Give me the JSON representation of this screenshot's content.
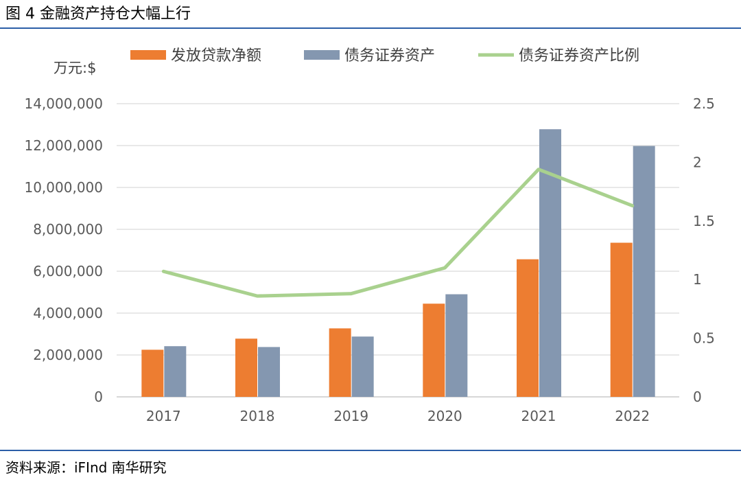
{
  "page": {
    "figure_title": "图 4  金融资产持仓大幅上行",
    "source_note": "资料来源：iFInd 南华研究"
  },
  "colors": {
    "loans": "#ed7d31",
    "securities": "#8497b0",
    "ratio": "#a9d18e",
    "grid": "#d9d9d9",
    "rule": "#2b5ea7"
  },
  "chart_data": {
    "type": "bar",
    "unit_label": "万元:$",
    "categories": [
      "2017",
      "2018",
      "2019",
      "2020",
      "2021",
      "2022"
    ],
    "series": [
      {
        "name": "发放贷款净额",
        "type": "bar",
        "axis": "left",
        "values": [
          2250000,
          2780000,
          3270000,
          4450000,
          6570000,
          7360000
        ]
      },
      {
        "name": "债务证券资产",
        "type": "bar",
        "axis": "left",
        "values": [
          2420000,
          2380000,
          2880000,
          4900000,
          12780000,
          11980000
        ]
      },
      {
        "name": "债务证券资产比例",
        "type": "line",
        "axis": "right",
        "values": [
          1.07,
          0.86,
          0.88,
          1.1,
          1.94,
          1.63
        ]
      }
    ],
    "y_left": {
      "min": 0,
      "max": 14000000,
      "ticks": [
        0,
        2000000,
        4000000,
        6000000,
        8000000,
        10000000,
        12000000,
        14000000
      ],
      "tick_labels": [
        "0",
        "2,000,000",
        "4,000,000",
        "6,000,000",
        "8,000,000",
        "10,000,000",
        "12,000,000",
        "14,000,000"
      ]
    },
    "y_right": {
      "min": 0,
      "max": 2.5,
      "ticks": [
        0,
        0.5,
        1,
        1.5,
        2,
        2.5
      ],
      "tick_labels": [
        "0",
        "0.5",
        "1",
        "1.5",
        "2",
        "2.5"
      ]
    },
    "grid": true,
    "legend_position": "top"
  }
}
